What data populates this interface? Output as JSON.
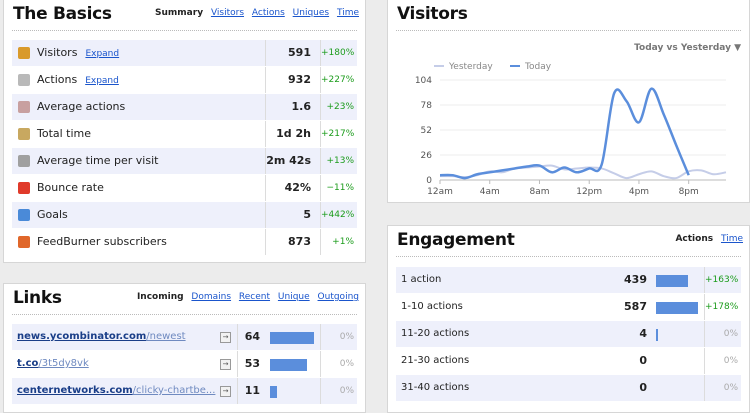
{
  "basics": {
    "title": "The Basics",
    "tabs": [
      {
        "label": "Summary",
        "active": true
      },
      {
        "label": "Visitors",
        "active": false
      },
      {
        "label": "Actions",
        "active": false
      },
      {
        "label": "Uniques",
        "active": false
      },
      {
        "label": "Time",
        "active": false
      }
    ],
    "rows": [
      {
        "label": "Visitors",
        "expand": "Expand",
        "value": "591",
        "change": "+180%",
        "icon": "visitors-icon",
        "icon_color": "#d99a2b"
      },
      {
        "label": "Actions",
        "expand": "Expand",
        "value": "932",
        "change": "+227%",
        "icon": "actions-icon",
        "icon_color": "#b9b9b9"
      },
      {
        "label": "Average actions",
        "expand": "",
        "value": "1.6",
        "change": "+23%",
        "icon": "average-actions-icon",
        "icon_color": "#c8a0a0"
      },
      {
        "label": "Total time",
        "expand": "",
        "value": "1d 2h",
        "change": "+217%",
        "icon": "clock-icon",
        "icon_color": "#c8a860"
      },
      {
        "label": "Average time per visit",
        "expand": "",
        "value": "2m 42s",
        "change": "+13%",
        "icon": "clock-icon",
        "icon_color": "#a0a0a0"
      },
      {
        "label": "Bounce rate",
        "expand": "",
        "value": "42%",
        "change": "−11%",
        "icon": "bounce-icon",
        "icon_color": "#e03a2a"
      },
      {
        "label": "Goals",
        "expand": "",
        "value": "5",
        "change": "+442%",
        "icon": "goals-icon",
        "icon_color": "#4a8ad8"
      },
      {
        "label": "FeedBurner subscribers",
        "expand": "",
        "value": "873",
        "change": "+1%",
        "icon": "feedburner-icon",
        "icon_color": "#e0672a"
      }
    ]
  },
  "visitors": {
    "title": "Visitors",
    "compare": "Today vs Yesterday ▼",
    "chart_data": {
      "type": "line",
      "x": [
        "12am",
        "1am",
        "2am",
        "3am",
        "4am",
        "5am",
        "6am",
        "7am",
        "8am",
        "9am",
        "10am",
        "11am",
        "12pm",
        "1pm",
        "2pm",
        "3pm",
        "4pm",
        "5pm",
        "6pm",
        "7pm",
        "8pm",
        "9pm",
        "10pm",
        "11pm"
      ],
      "x_tick_labels": [
        "12am",
        "4am",
        "8am",
        "12pm",
        "4pm",
        "8pm"
      ],
      "y_ticks": [
        "104",
        "78",
        "52",
        "26",
        "0"
      ],
      "ylim": [
        0,
        104
      ],
      "series": [
        {
          "name": "Yesterday",
          "color": "#c5cde8",
          "values": [
            4,
            4,
            3,
            5,
            9,
            8,
            12,
            13,
            14,
            15,
            11,
            12,
            13,
            12,
            7,
            2,
            6,
            9,
            4,
            2,
            9,
            10,
            6,
            8
          ]
        },
        {
          "name": "Today",
          "color": "#5b8edc",
          "values": [
            5,
            5,
            2,
            6,
            8,
            10,
            12,
            14,
            15,
            8,
            13,
            8,
            12,
            16,
            90,
            82,
            60,
            95,
            68,
            36,
            5,
            null,
            null,
            null
          ]
        }
      ]
    }
  },
  "links": {
    "title": "Links",
    "tabs": [
      {
        "label": "Incoming",
        "active": true
      },
      {
        "label": "Domains",
        "active": false
      },
      {
        "label": "Recent",
        "active": false
      },
      {
        "label": "Unique",
        "active": false
      },
      {
        "label": "Outgoing",
        "active": false
      }
    ],
    "rows": [
      {
        "domain": "news.ycombinator.com",
        "path": "/newest",
        "value": "64",
        "change": "0%",
        "share": 1.0
      },
      {
        "domain": "t.co",
        "path": "/3t5dy8vk",
        "value": "53",
        "change": "0%",
        "share": 0.83
      },
      {
        "domain": "centernetworks.com",
        "path": "/clicky-chartbe...",
        "value": "11",
        "change": "0%",
        "share": 0.17
      }
    ]
  },
  "engagement": {
    "title": "Engagement",
    "tabs": [
      {
        "label": "Actions",
        "active": true
      },
      {
        "label": "Time",
        "active": false
      }
    ],
    "rows": [
      {
        "label": "1 action",
        "value": "439",
        "change": "+163%",
        "share": 0.75
      },
      {
        "label": "1-10 actions",
        "value": "587",
        "change": "+178%",
        "share": 1.0
      },
      {
        "label": "11-20 actions",
        "value": "4",
        "change": "0%",
        "share": 0.01
      },
      {
        "label": "21-30 actions",
        "value": "0",
        "change": "0%",
        "share": 0
      },
      {
        "label": "31-40 actions",
        "value": "0",
        "change": "0%",
        "share": 0
      }
    ]
  }
}
